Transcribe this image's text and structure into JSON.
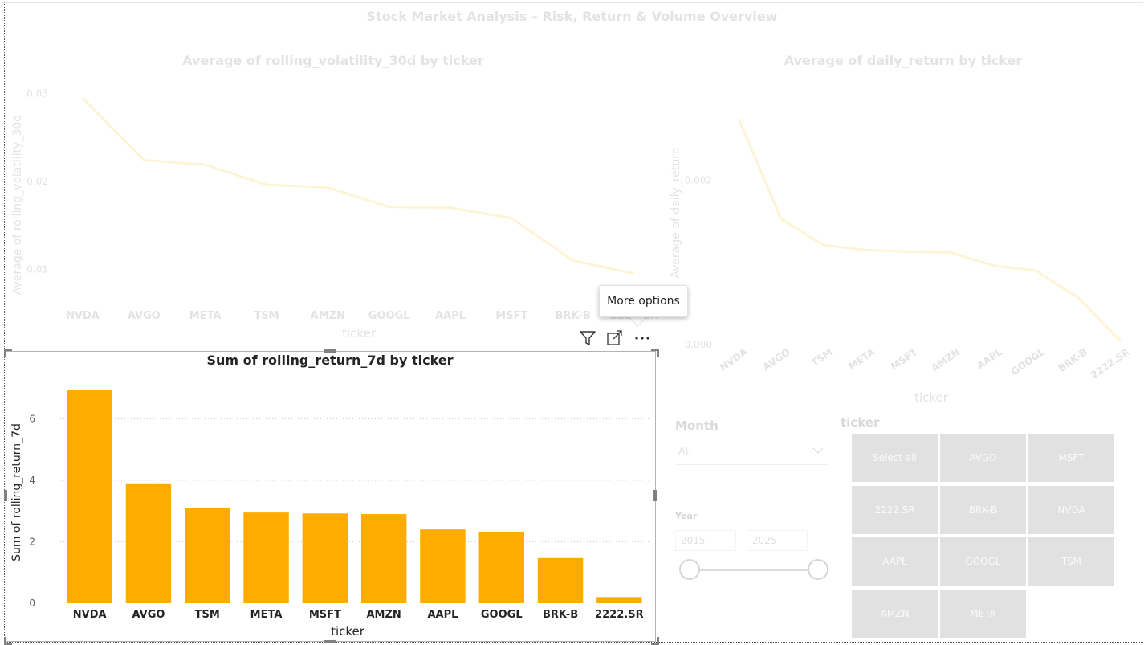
{
  "report": {
    "title": "Stock Market Analysis – Risk, Return & Volume Overview"
  },
  "colors": {
    "bar": "#FFAB00",
    "faded_line": "#FFF3D6",
    "faded_text": "#E3E3E3",
    "tile": "#E1E1E1"
  },
  "tooltip": {
    "text": "More options"
  },
  "visual_header": {
    "icons": [
      "filter-icon",
      "focus-mode-icon",
      "more-options-icon"
    ]
  },
  "slicers": {
    "month": {
      "header": "Month",
      "selected": "All"
    },
    "year": {
      "header": "Year",
      "start": "2015",
      "end": "2025"
    },
    "ticker": {
      "header": "ticker",
      "tiles": [
        "Select all",
        "AVGO",
        "MSFT",
        "2222.SR",
        "BRK-B",
        "NVDA",
        "AAPL",
        "GOOGL",
        "TSM",
        "AMZN",
        "META"
      ]
    }
  },
  "chart_data": [
    {
      "type": "line",
      "title": "Average of rolling_volatility_30d by ticker",
      "xlabel": "ticker",
      "ylabel": "Average of rolling_volatility_30d",
      "categories": [
        "NVDA",
        "AVGO",
        "META",
        "TSM",
        "AMZN",
        "GOOGL",
        "AAPL",
        "MSFT",
        "BRK-B",
        "2222.SR"
      ],
      "values": [
        0.0295,
        0.0224,
        0.0219,
        0.0196,
        0.0193,
        0.0171,
        0.017,
        0.0158,
        0.011,
        0.0095
      ],
      "yticks": [
        "0.01",
        "0.02",
        "0.03"
      ],
      "ylim": [
        0.005,
        0.0315
      ],
      "grid": false,
      "style": "faded"
    },
    {
      "type": "line",
      "title": "Average of daily_return by ticker",
      "xlabel": "ticker",
      "ylabel": "Average of daily_return",
      "categories": [
        "NVDA",
        "AVGO",
        "TSM",
        "META",
        "MSFT",
        "AMZN",
        "AAPL",
        "GOOGL",
        "BRK-B",
        "2222.SR"
      ],
      "values": [
        0.00275,
        0.00153,
        0.00121,
        0.00115,
        0.00113,
        0.00112,
        0.00096,
        0.0009,
        0.00057,
        4e-05
      ],
      "yticks": [
        "0.000",
        "0.002"
      ],
      "ylim": [
        0,
        0.00302
      ],
      "grid": false,
      "style": "faded"
    },
    {
      "type": "bar",
      "title": "Sum of rolling_return_7d by ticker",
      "xlabel": "ticker",
      "ylabel": "Sum of rolling_return_7d",
      "categories": [
        "NVDA",
        "AVGO",
        "TSM",
        "META",
        "MSFT",
        "AMZN",
        "AAPL",
        "GOOGL",
        "BRK-B",
        "2222.SR"
      ],
      "values": [
        6.95,
        3.9,
        3.1,
        2.95,
        2.92,
        2.9,
        2.4,
        2.33,
        1.47,
        0.2
      ],
      "yticks": [
        "0",
        "2",
        "4",
        "6"
      ],
      "ylim": [
        0,
        7.45
      ],
      "grid": true,
      "style": "focused"
    }
  ]
}
